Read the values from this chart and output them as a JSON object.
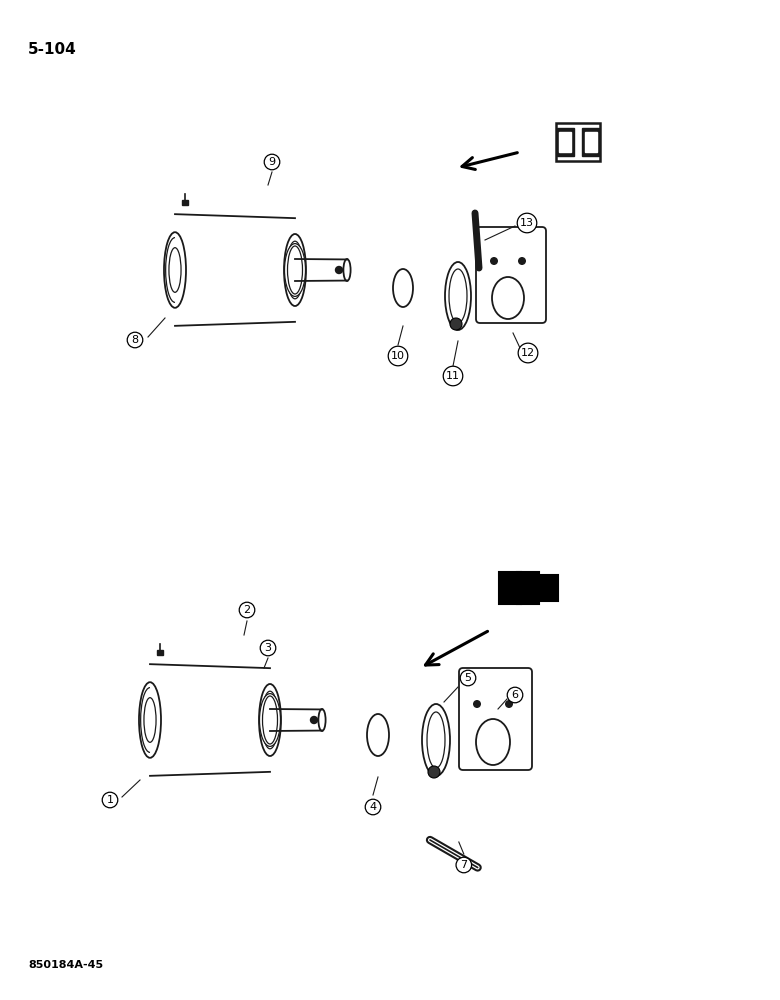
{
  "page_number": "5-104",
  "bottom_ref": "850184A-45",
  "bg_color": "#ffffff",
  "line_color": "#1a1a1a",
  "text_color": "#000000"
}
